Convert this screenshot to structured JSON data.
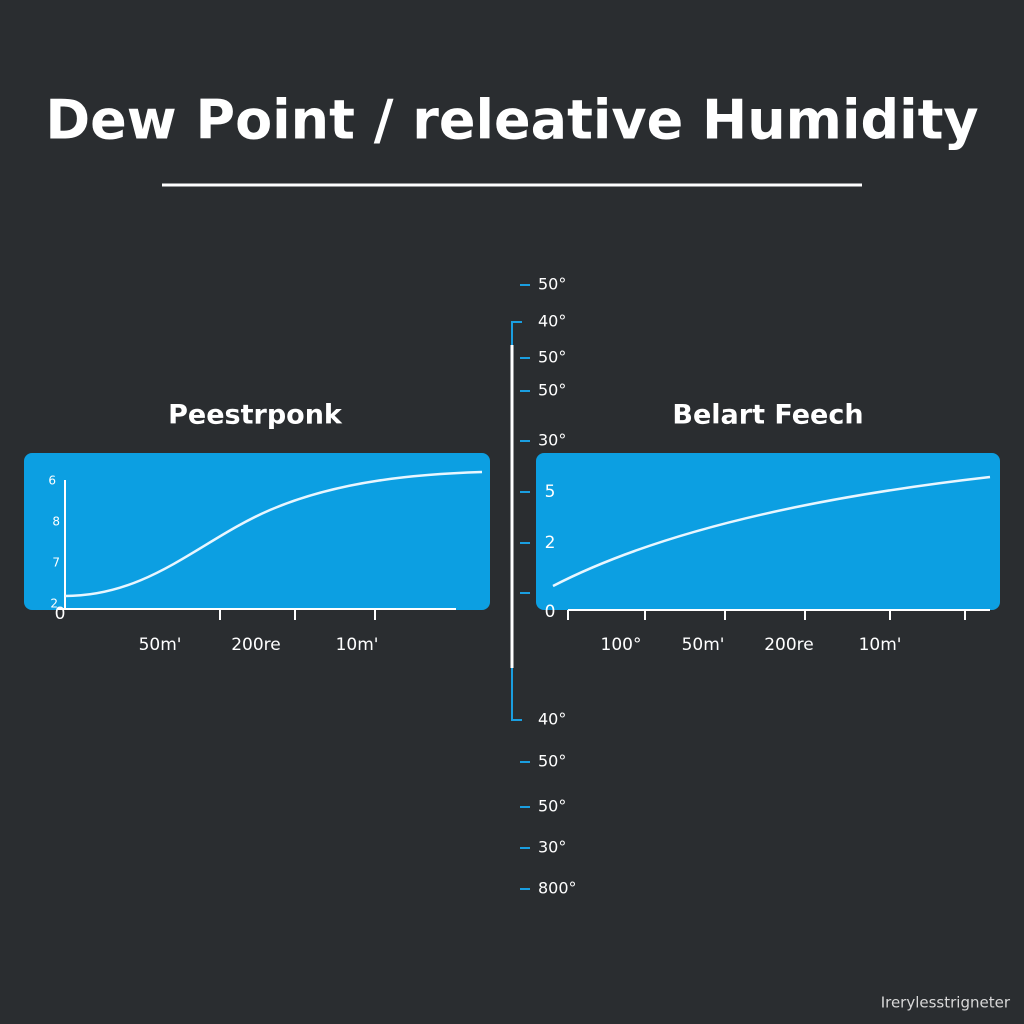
{
  "header": {
    "title": "Dew Point / releative Humidity"
  },
  "center_scale": {
    "top_labels": [
      "50°",
      "40°",
      "50°",
      "50°",
      "30°"
    ],
    "bottom_labels": [
      "40°",
      "50°",
      "50°",
      "30°",
      "800°"
    ]
  },
  "panels": [
    {
      "title": "Peestrponk",
      "y_labels": [
        "6",
        "8",
        "7",
        "2",
        "0"
      ],
      "x_labels": [
        "50m'",
        "200re",
        "10m'"
      ]
    },
    {
      "title": "Belart Feech",
      "y_labels": [
        "5",
        "2",
        "0"
      ],
      "x_labels": [
        "100°",
        "50m'",
        "200re",
        "10m'"
      ]
    }
  ],
  "footer": "Irerylesstrigneter"
}
